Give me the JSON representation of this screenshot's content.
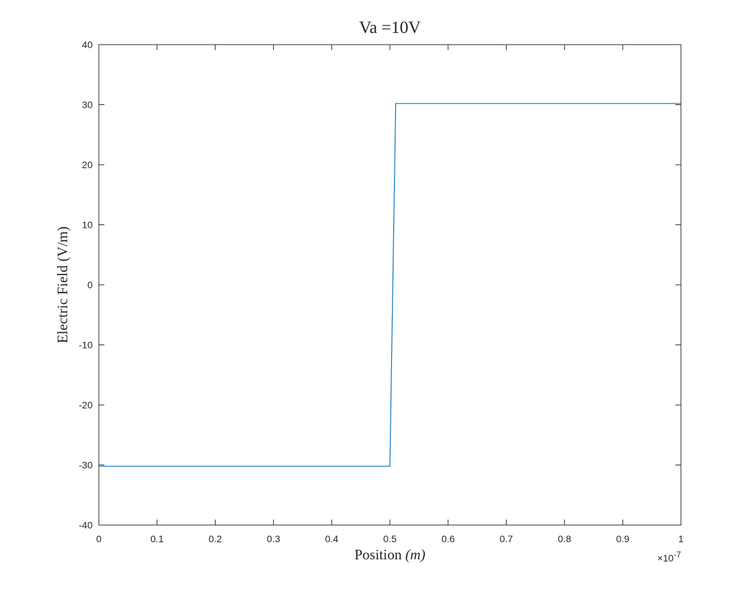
{
  "chart_data": {
    "type": "line",
    "title": "Va =10V",
    "xlabel_text": "Position ",
    "xlabel_var": "(m)",
    "ylabel": "Electric Field (V/m)",
    "xlim": [
      0,
      1
    ],
    "ylim": [
      -40,
      40
    ],
    "x_exponent_prefix": "×10",
    "x_exponent_power": "-7",
    "x_ticks": [
      0,
      0.1,
      0.2,
      0.3,
      0.4,
      0.5,
      0.6,
      0.7,
      0.8,
      0.9,
      1
    ],
    "x_tick_labels": [
      "0",
      "0.1",
      "0.2",
      "0.3",
      "0.4",
      "0.5",
      "0.6",
      "0.7",
      "0.8",
      "0.9",
      "1"
    ],
    "y_ticks": [
      40,
      30,
      20,
      10,
      0,
      -10,
      -20,
      -30,
      -40
    ],
    "y_tick_labels": [
      "40",
      "30",
      "20",
      "10",
      "0",
      "-10",
      "-20",
      "-30",
      "-40"
    ],
    "grid": false,
    "series": [
      {
        "color": "#0072BD",
        "x": [
          0,
          0.5,
          0.51,
          1.0
        ],
        "y": [
          -30.2,
          -30.2,
          30.2,
          30.2
        ]
      }
    ]
  }
}
